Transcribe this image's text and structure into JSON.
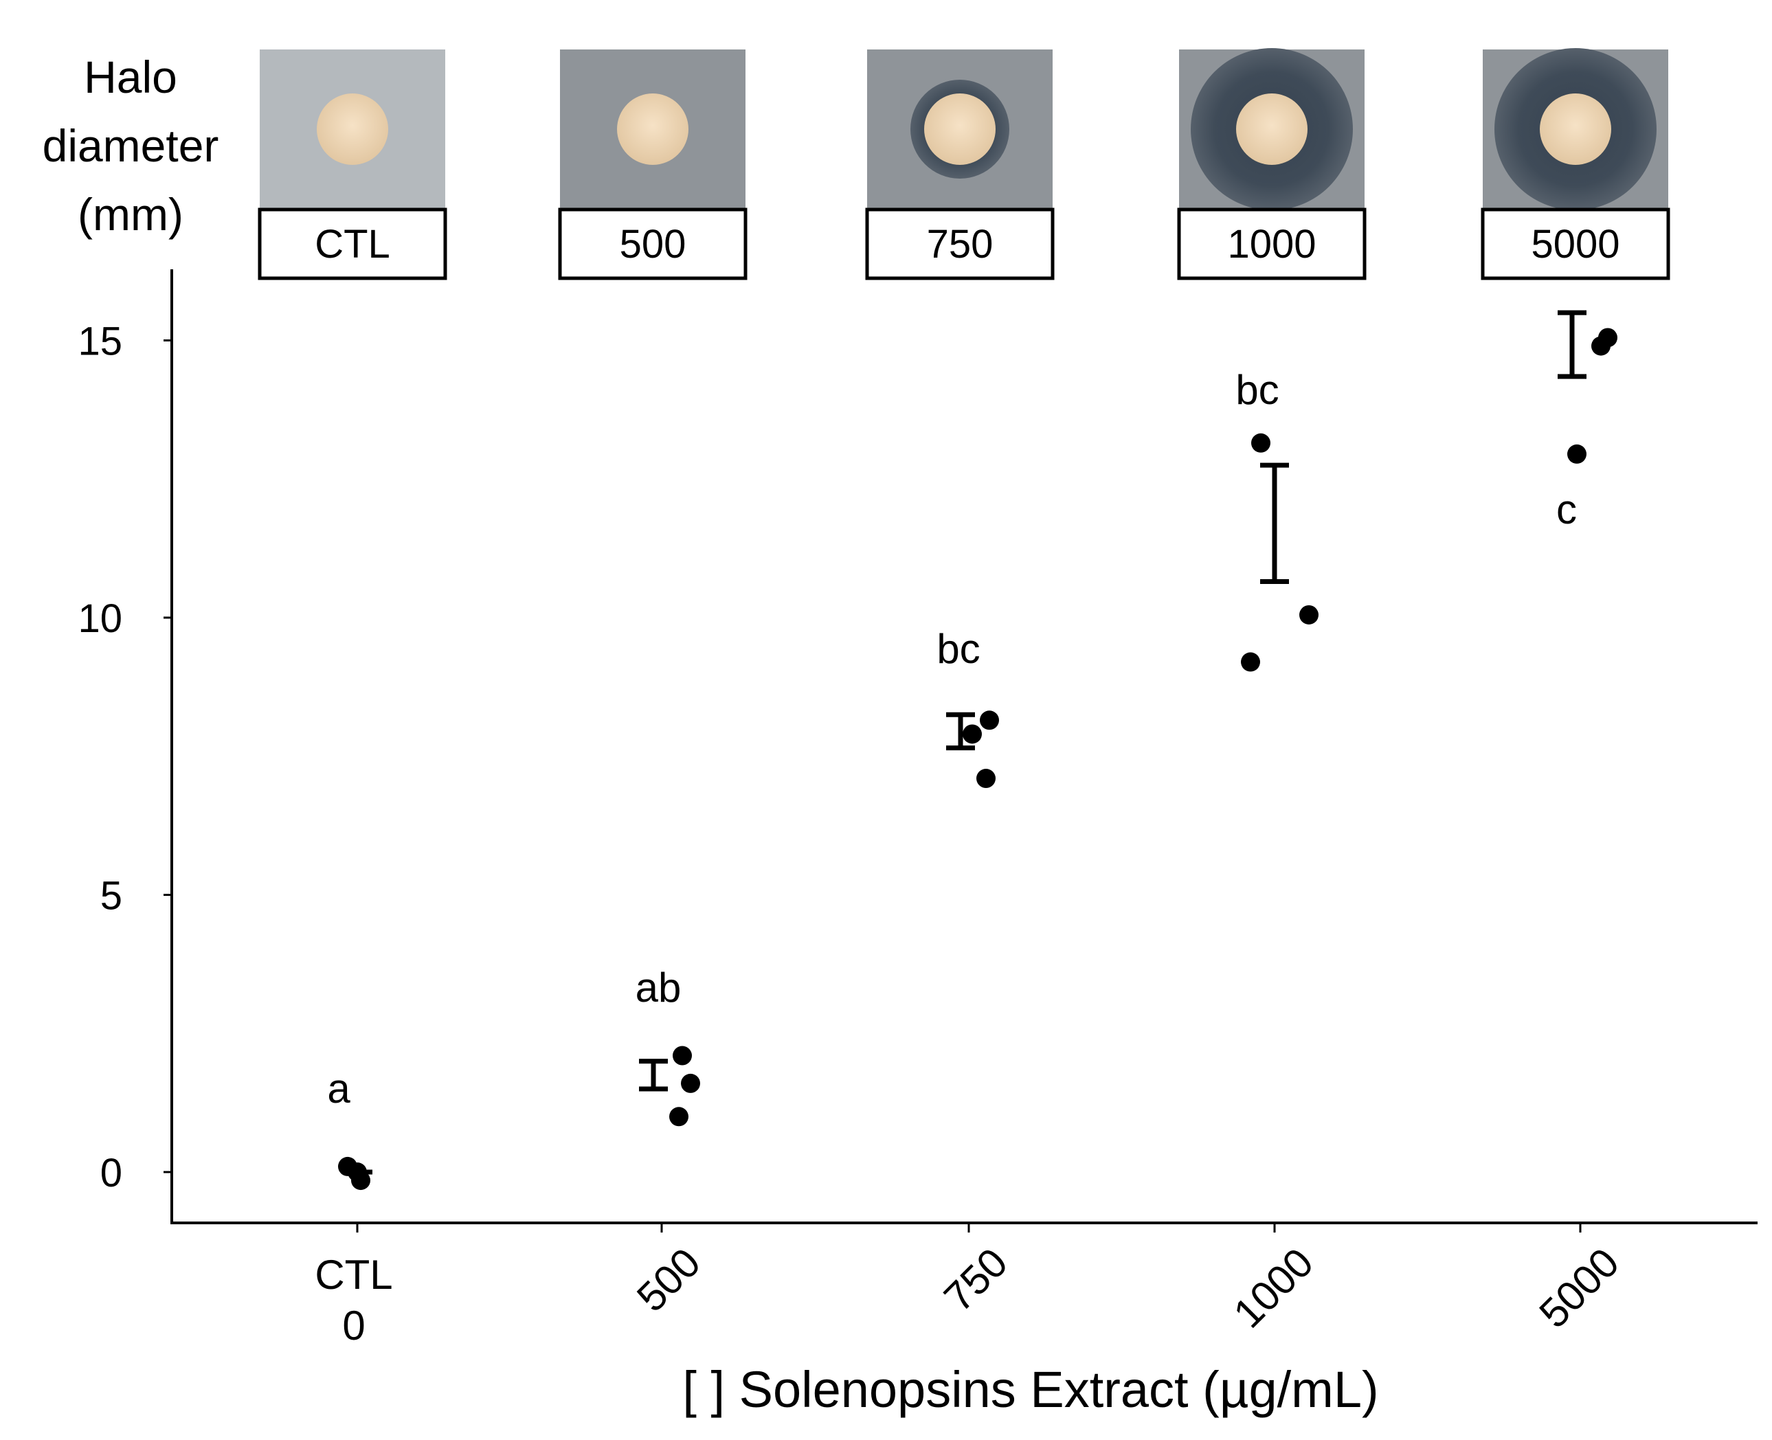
{
  "chart_data": {
    "type": "scatter",
    "title": "",
    "ylabel_lines": [
      "Halo",
      "diameter",
      "(mm)"
    ],
    "xlabel": "[ ] Solenopsins Extract (µg/mL)",
    "ylim": [
      -1,
      16.5
    ],
    "yticks": [
      0,
      5,
      10,
      15
    ],
    "categories": [
      "CTL",
      "500",
      "750",
      "1000",
      "5000"
    ],
    "x_tick_labels": [
      {
        "lines": [
          "CTL",
          "0"
        ],
        "rotated": false
      },
      {
        "lines": [
          "500"
        ],
        "rotated": true
      },
      {
        "lines": [
          "750"
        ],
        "rotated": true
      },
      {
        "lines": [
          "1000"
        ],
        "rotated": true
      },
      {
        "lines": [
          "5000"
        ],
        "rotated": true
      }
    ],
    "groups": [
      {
        "category": "CTL",
        "points": [
          0.1,
          -0.15,
          0.0
        ],
        "mean_line": 0.0,
        "sig": "a"
      },
      {
        "category": "500",
        "points": [
          2.1,
          1.6,
          1.0
        ],
        "error_bar": {
          "low": 1.5,
          "high": 2.0
        },
        "sig": "ab"
      },
      {
        "category": "750",
        "points": [
          8.15,
          7.9,
          7.1
        ],
        "error_bar": {
          "low": 7.65,
          "high": 8.25
        },
        "sig": "bc"
      },
      {
        "category": "1000",
        "points": [
          13.15,
          10.05,
          9.2
        ],
        "error_bar": {
          "low": 10.65,
          "high": 12.75
        },
        "sig": "bc"
      },
      {
        "category": "5000",
        "points": [
          15.05,
          14.9,
          12.95
        ],
        "error_bar": {
          "low": 14.35,
          "high": 15.5
        },
        "sig": "c"
      }
    ],
    "inset_images": [
      {
        "label": "CTL",
        "halo": "none"
      },
      {
        "label": "500",
        "halo": "none"
      },
      {
        "label": "750",
        "halo": "thin"
      },
      {
        "label": "1000",
        "halo": "large"
      },
      {
        "label": "5000",
        "halo": "large"
      }
    ]
  }
}
